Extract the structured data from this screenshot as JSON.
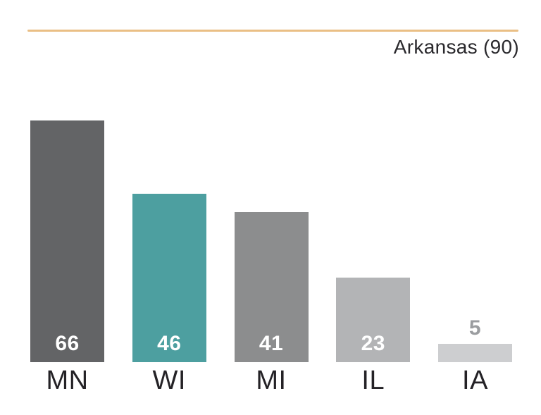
{
  "header": {
    "rule_color": "#eabf85"
  },
  "chart_data": {
    "type": "bar",
    "title": "Arkansas (90)",
    "categories": [
      "MN",
      "WI",
      "MI",
      "IL",
      "IA"
    ],
    "values": [
      66,
      46,
      41,
      23,
      5
    ],
    "xlabel": "",
    "ylabel": "",
    "ylim": [
      0,
      90
    ],
    "grid": false,
    "legend": false,
    "axis_labels_position": "bottom",
    "value_labels_position": "inside-bottom (outside-top when bar too short)",
    "bar_colors": [
      "#636466",
      "#4d9fa0",
      "#8c8d8e",
      "#b3b4b6",
      "#cdced0"
    ],
    "value_label_colors": [
      "#ffffff",
      "#ffffff",
      "#ffffff",
      "#ffffff",
      "#9b9da0"
    ],
    "text_color": "#242226",
    "accent_color": "#eabf85"
  }
}
